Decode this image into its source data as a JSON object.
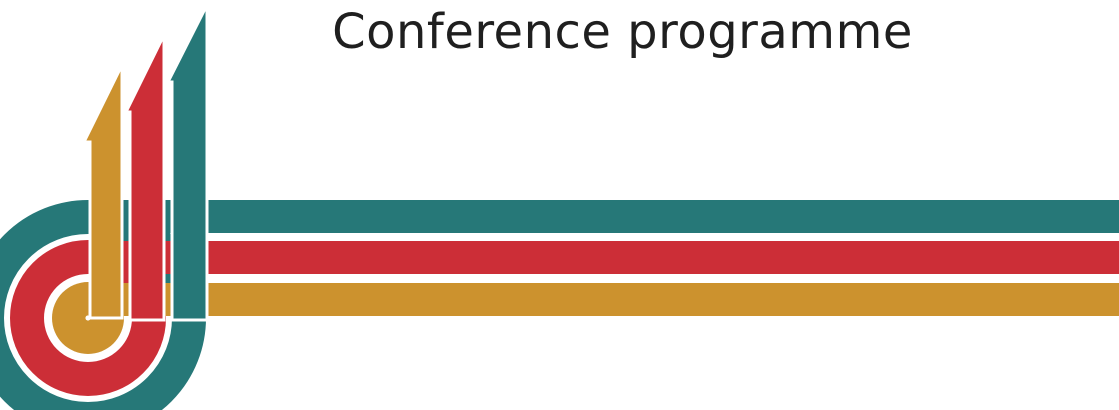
{
  "header": {
    "title": "Conference programme"
  }
}
